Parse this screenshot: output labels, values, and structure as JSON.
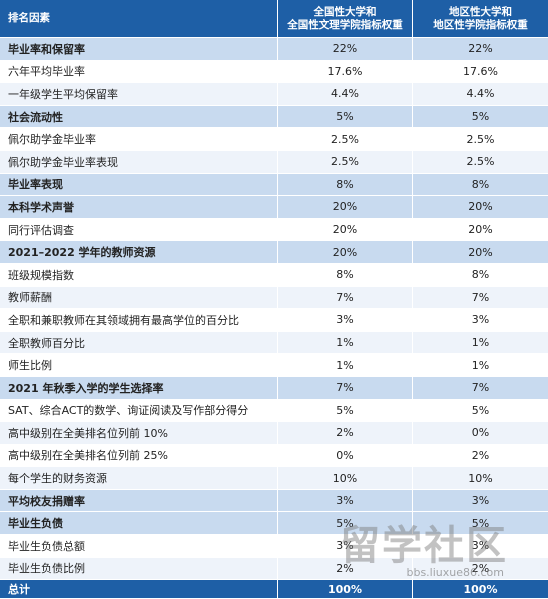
{
  "table": {
    "header": [
      "排名因素",
      "全国性大学和\n全国性文理学院指标权重",
      "地区性大学和\n地区性学院指标权重"
    ],
    "sections": [
      {
        "heading": [
          "毕业率和保留率",
          "22%",
          "22%"
        ],
        "rows": [
          [
            "六年平均毕业率",
            "17.6%",
            "17.6%"
          ],
          [
            "一年级学生平均保留率",
            "4.4%",
            "4.4%"
          ]
        ]
      },
      {
        "heading": [
          "社会流动性",
          "5%",
          "5%"
        ],
        "rows": [
          [
            "佩尔助学金毕业率",
            "2.5%",
            "2.5%"
          ],
          [
            "佩尔助学金毕业率表现",
            "2.5%",
            "2.5%"
          ]
        ]
      },
      {
        "heading": [
          "毕业率表现",
          "8%",
          "8%"
        ],
        "rows": []
      },
      {
        "heading": [
          "本科学术声誉",
          "20%",
          "20%"
        ],
        "rows": [
          [
            "同行评估调查",
            "20%",
            "20%"
          ]
        ]
      },
      {
        "heading": [
          "2021–2022 学年的教师资源",
          "20%",
          "20%"
        ],
        "rows": [
          [
            "班级规模指数",
            "8%",
            "8%"
          ],
          [
            "教师薪酬",
            "7%",
            "7%"
          ],
          [
            "全职和兼职教师在其领域拥有最高学位的百分比",
            "3%",
            "3%"
          ],
          [
            "全职教师百分比",
            "1%",
            "1%"
          ],
          [
            "师生比例",
            "1%",
            "1%"
          ]
        ]
      },
      {
        "heading": [
          "2021 年秋季入学的学生选择率",
          "7%",
          "7%"
        ],
        "rows": [
          [
            "SAT、综合ACT的数学、询证阅读及写作部分得分",
            "5%",
            "5%"
          ],
          [
            "高中级别在全美排名位列前 10%",
            "2%",
            "0%"
          ],
          [
            "高中级别在全美排名位列前 25%",
            "0%",
            "2%"
          ],
          [
            "每个学生的财务资源",
            "10%",
            "10%"
          ]
        ]
      },
      {
        "heading": [
          "平均校友捐赠率",
          "3%",
          "3%"
        ],
        "rows": []
      },
      {
        "heading": [
          "毕业生负债",
          "5%",
          "5%"
        ],
        "rows": [
          [
            "毕业生负债总额",
            "3%",
            "3%"
          ],
          [
            "毕业生负债比例",
            "2%",
            "2%"
          ]
        ]
      }
    ],
    "total": [
      "总计",
      "100%",
      "100%"
    ]
  },
  "watermark": {
    "title": "留学社区",
    "url": "bbs.liuxue86.com"
  }
}
